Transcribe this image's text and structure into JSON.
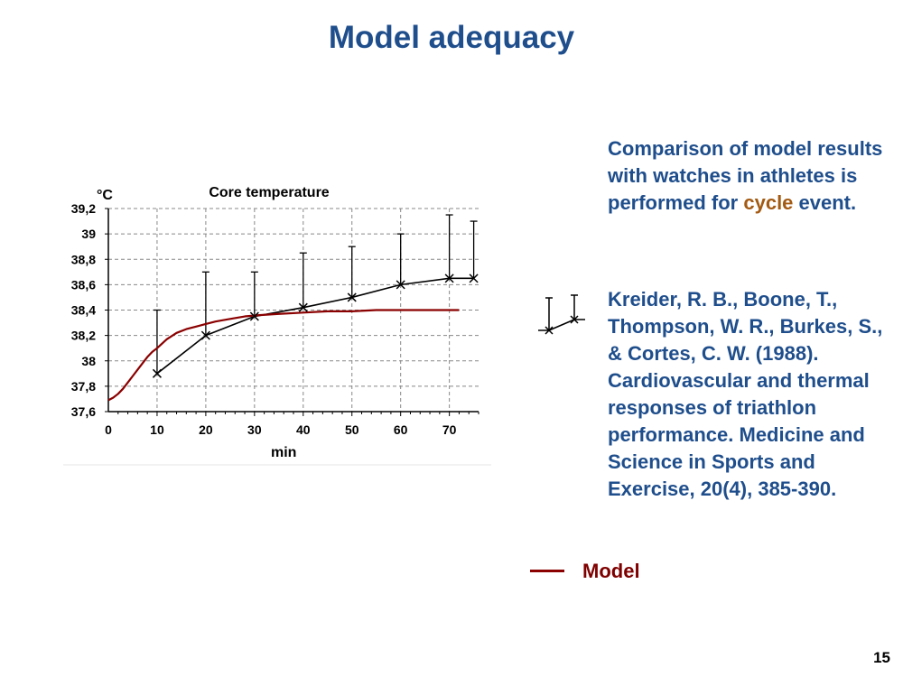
{
  "slide": {
    "title": "Model adequacy",
    "description_before": "Comparison of model results with watches in athletes is performed for ",
    "description_highlight": "cycle",
    "description_after": " event.",
    "reference": "Kreider, R. B., Boone, T., Thompson, W. R., Burkes, S., & Cortes, C. W. (1988). Cardiovascular and thermal responses of triathlon performance. Medicine and Science in Sports and Exercise, 20(4), 385-390.",
    "legend_model": "Model",
    "page_number": "15"
  },
  "colors": {
    "title": "#1f4e8c",
    "text": "#1f4e8c",
    "highlight": "#a35a12",
    "model": "#8b0000",
    "observed": "#000000"
  },
  "chart_data": {
    "type": "line",
    "title": "Core  temperature",
    "ylabel": "°C",
    "xlabel": "min",
    "xlim": [
      0,
      76
    ],
    "ylim": [
      37.6,
      39.2
    ],
    "x_ticks": [
      0,
      10,
      20,
      30,
      40,
      50,
      60,
      70
    ],
    "y_ticks": [
      37.6,
      37.8,
      38.0,
      38.2,
      38.4,
      38.6,
      38.8,
      39.0,
      39.2
    ],
    "y_tick_labels": [
      "37,6",
      "37,8",
      "38",
      "38,2",
      "38,4",
      "38,6",
      "38,8",
      "39",
      "39,2"
    ],
    "grid": true,
    "series": [
      {
        "name": "",
        "style": "markers-x-with-error-bars",
        "x": [
          10,
          20,
          30,
          40,
          50,
          60,
          70,
          75
        ],
        "y": [
          37.9,
          38.2,
          38.35,
          38.42,
          38.5,
          38.6,
          38.65,
          38.65
        ],
        "error_upper": [
          38.4,
          38.7,
          38.7,
          38.85,
          38.9,
          39.0,
          39.15,
          39.1
        ]
      },
      {
        "name": "Model",
        "style": "line",
        "x": [
          0,
          1,
          2,
          3,
          4,
          5,
          6,
          7,
          8,
          9,
          10,
          12,
          14,
          16,
          18,
          20,
          22,
          25,
          28,
          31,
          35,
          40,
          45,
          50,
          55,
          60,
          65,
          72
        ],
        "y": [
          37.69,
          37.71,
          37.74,
          37.78,
          37.83,
          37.88,
          37.93,
          37.98,
          38.03,
          38.07,
          38.1,
          38.17,
          38.22,
          38.25,
          38.27,
          38.29,
          38.31,
          38.33,
          38.35,
          38.36,
          38.37,
          38.38,
          38.39,
          38.39,
          38.4,
          38.4,
          38.4,
          38.4
        ]
      }
    ]
  }
}
